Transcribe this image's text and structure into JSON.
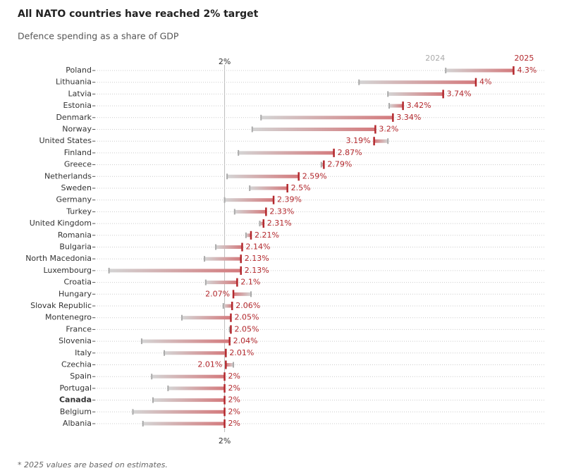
{
  "chart_data": {
    "type": "dumbbell",
    "title": "All NATO countries have reached 2% target",
    "subtitle": "Defence spending as a share of GDP",
    "note": "* 2025 values are based on estimates.",
    "categories": [
      "Poland",
      "Lithuania",
      "Latvia",
      "Estonia",
      "Denmark",
      "Norway",
      "United States",
      "Finland",
      "Greece",
      "Netherlands",
      "Sweden",
      "Germany",
      "Turkey",
      "United Kingdom",
      "Romania",
      "Bulgaria",
      "North Macedonia",
      "Luxembourg",
      "Croatia",
      "Hungary",
      "Slovak Republic",
      "Montenegro",
      "France",
      "Slovenia",
      "Italy",
      "Czechia",
      "Spain",
      "Portugal",
      "Canada",
      "Belgium",
      "Albania"
    ],
    "highlight": "Canada",
    "series": [
      {
        "name": "2024",
        "color": "#aaaaaa",
        "values": [
          3.76,
          3.07,
          3.3,
          3.31,
          2.29,
          2.22,
          3.3,
          2.11,
          2.77,
          2.02,
          2.2,
          2.0,
          2.08,
          2.28,
          2.17,
          1.93,
          1.84,
          1.08,
          1.85,
          2.21,
          1.99,
          1.66,
          2.04,
          1.34,
          1.52,
          2.07,
          1.42,
          1.55,
          1.43,
          1.27,
          1.35
        ]
      },
      {
        "name": "2025",
        "color": "#b3282d",
        "values": [
          4.3,
          4,
          3.74,
          3.42,
          3.34,
          3.2,
          3.19,
          2.87,
          2.79,
          2.59,
          2.5,
          2.39,
          2.33,
          2.31,
          2.21,
          2.14,
          2.13,
          2.13,
          2.1,
          2.07,
          2.06,
          2.05,
          2.05,
          2.04,
          2.01,
          2.01,
          2,
          2,
          2,
          2,
          2
        ],
        "value_labels": [
          "4.3%",
          "4%",
          "3.74%",
          "3.42%",
          "3.34%",
          "3.2%",
          "3.19%",
          "2.87%",
          "2.79%",
          "2.59%",
          "2.5%",
          "2.39%",
          "2.33%",
          "2.31%",
          "2.21%",
          "2.14%",
          "2.13%",
          "2.13%",
          "2.1%",
          "2.07%",
          "2.06%",
          "2.05%",
          "2.05%",
          "2.04%",
          "2.01%",
          "2.01%",
          "2%",
          "2%",
          "2%",
          "2%",
          "2%"
        ]
      }
    ],
    "xlim": [
      0.97,
      4.55
    ],
    "xticks": [
      {
        "value": 2,
        "label": "2%"
      }
    ],
    "grid": true
  }
}
